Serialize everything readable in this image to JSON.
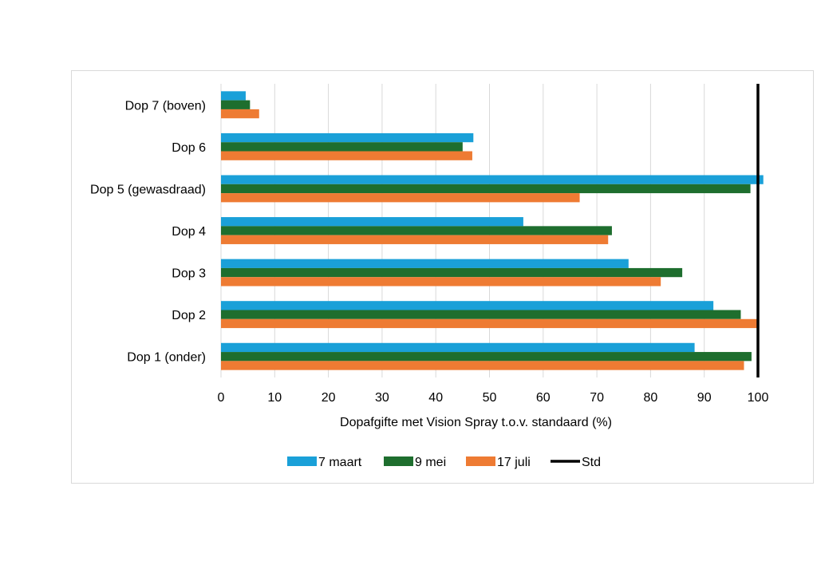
{
  "chart_data": {
    "type": "bar",
    "orientation": "horizontal",
    "categories": [
      "Dop 7 (boven)",
      "Dop 6",
      "Dop 5 (gewasdraad)",
      "Dop 4",
      "Dop 3",
      "Dop 2",
      "Dop 1 (onder)"
    ],
    "series": [
      {
        "name": "7 maart",
        "color": "#1aa0d8",
        "values": [
          4.6,
          47,
          101,
          56.3,
          75.9,
          91.7,
          88.2
        ]
      },
      {
        "name": "9 mei",
        "color": "#1e6e2e",
        "values": [
          5.4,
          45,
          98.6,
          72.8,
          85.9,
          96.8,
          98.8
        ]
      },
      {
        "name": "17 juli",
        "color": "#ee7b33",
        "values": [
          7.1,
          46.8,
          66.8,
          72.1,
          81.9,
          99.9,
          97.4
        ]
      }
    ],
    "reference_line": {
      "name": "Std",
      "value": 100,
      "color": "#000000"
    },
    "xlabel": "Dopafgifte met Vision Spray t.o.v. standaard (%)",
    "xlim": [
      0,
      100
    ],
    "xticks": [
      0,
      10,
      20,
      30,
      40,
      50,
      60,
      70,
      80,
      90,
      100
    ],
    "grid": "vertical",
    "legend_position": "bottom"
  }
}
